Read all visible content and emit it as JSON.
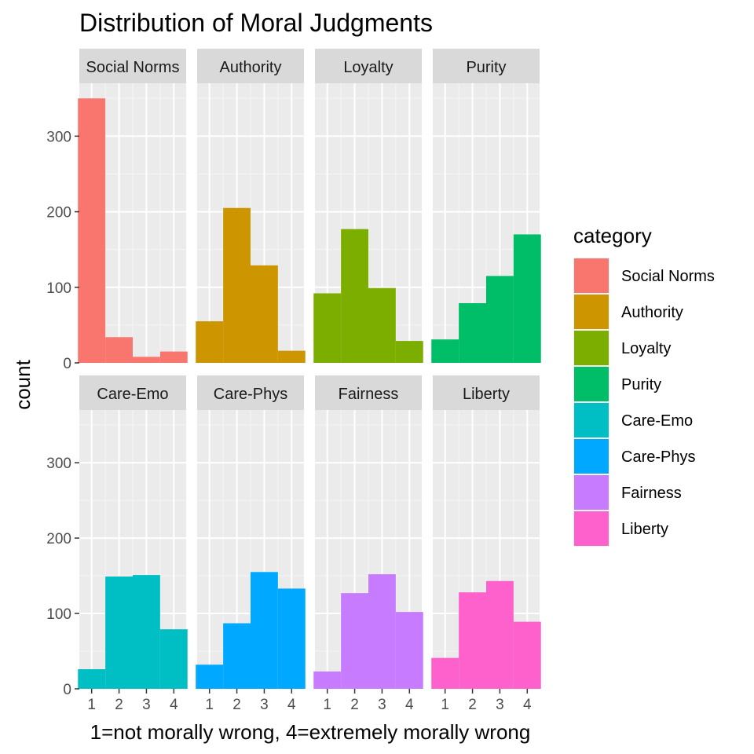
{
  "chart_data": {
    "type": "bar",
    "title": "Distribution of Moral Judgments",
    "xlabel": "1=not morally wrong, 4=extremely morally wrong",
    "ylabel": "count",
    "x": [
      1,
      2,
      3,
      4
    ],
    "x_tick_labels": [
      "1",
      "2",
      "3",
      "4"
    ],
    "ylim": [
      0,
      370
    ],
    "y_ticks": [
      0,
      100,
      200,
      300
    ],
    "grid": true,
    "facet_layout": "2 rows x 4 columns",
    "legend": {
      "title": "category",
      "placement": "right"
    },
    "series": [
      {
        "name": "Social Norms",
        "color": "#F8766D",
        "values": [
          350,
          34,
          8,
          15
        ]
      },
      {
        "name": "Authority",
        "color": "#CD9600",
        "values": [
          55,
          205,
          129,
          16
        ]
      },
      {
        "name": "Loyalty",
        "color": "#7CAE00",
        "values": [
          92,
          177,
          99,
          29
        ]
      },
      {
        "name": "Purity",
        "color": "#00BE67",
        "values": [
          31,
          79,
          115,
          170
        ]
      },
      {
        "name": "Care-Emo",
        "color": "#00BFC4",
        "values": [
          26,
          149,
          151,
          79
        ]
      },
      {
        "name": "Care-Phys",
        "color": "#00A9FF",
        "values": [
          32,
          87,
          155,
          133
        ]
      },
      {
        "name": "Fairness",
        "color": "#C77CFF",
        "values": [
          23,
          127,
          152,
          102
        ]
      },
      {
        "name": "Liberty",
        "color": "#FF61CC",
        "values": [
          41,
          128,
          143,
          89
        ]
      }
    ]
  }
}
